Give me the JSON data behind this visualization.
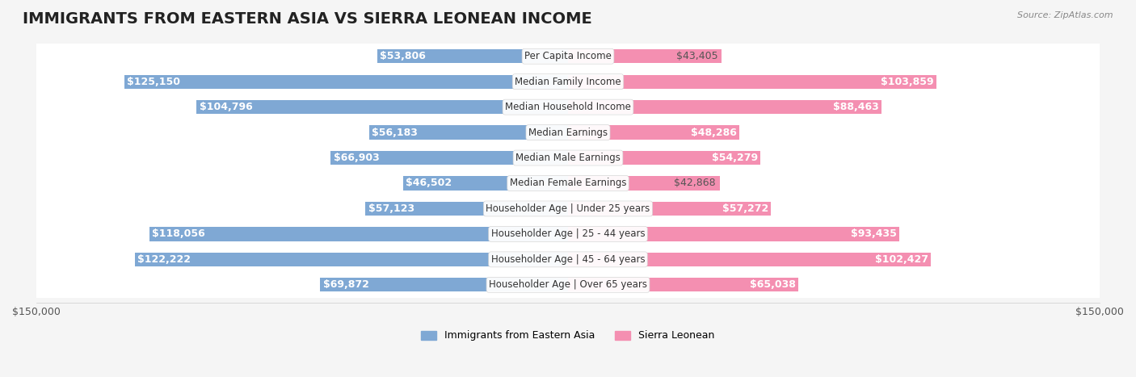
{
  "title": "IMMIGRANTS FROM EASTERN ASIA VS SIERRA LEONEAN INCOME",
  "source": "Source: ZipAtlas.com",
  "categories": [
    "Per Capita Income",
    "Median Family Income",
    "Median Household Income",
    "Median Earnings",
    "Median Male Earnings",
    "Median Female Earnings",
    "Householder Age | Under 25 years",
    "Householder Age | 25 - 44 years",
    "Householder Age | 45 - 64 years",
    "Householder Age | Over 65 years"
  ],
  "left_values": [
    53806,
    125150,
    104796,
    56183,
    66903,
    46502,
    57123,
    118056,
    122222,
    69872
  ],
  "right_values": [
    43405,
    103859,
    88463,
    48286,
    54279,
    42868,
    57272,
    93435,
    102427,
    65038
  ],
  "left_labels": [
    "$53,806",
    "$125,150",
    "$104,796",
    "$56,183",
    "$66,903",
    "$46,502",
    "$57,123",
    "$118,056",
    "$122,222",
    "$69,872"
  ],
  "right_labels": [
    "$43,405",
    "$103,859",
    "$88,463",
    "$48,286",
    "$54,279",
    "$42,868",
    "$57,272",
    "$93,435",
    "$102,427",
    "$65,038"
  ],
  "left_color": "#7fa8d4",
  "left_color_dark": "#5b8fc2",
  "right_color": "#f48fb1",
  "right_color_dark": "#e8607a",
  "bar_height": 0.55,
  "max_value": 150000,
  "legend_left": "Immigrants from Eastern Asia",
  "legend_right": "Sierra Leonean",
  "background_color": "#f5f5f5",
  "row_bg_color": "#ffffff",
  "title_fontsize": 14,
  "label_fontsize": 9,
  "category_fontsize": 8.5,
  "axis_label": "$150,000"
}
